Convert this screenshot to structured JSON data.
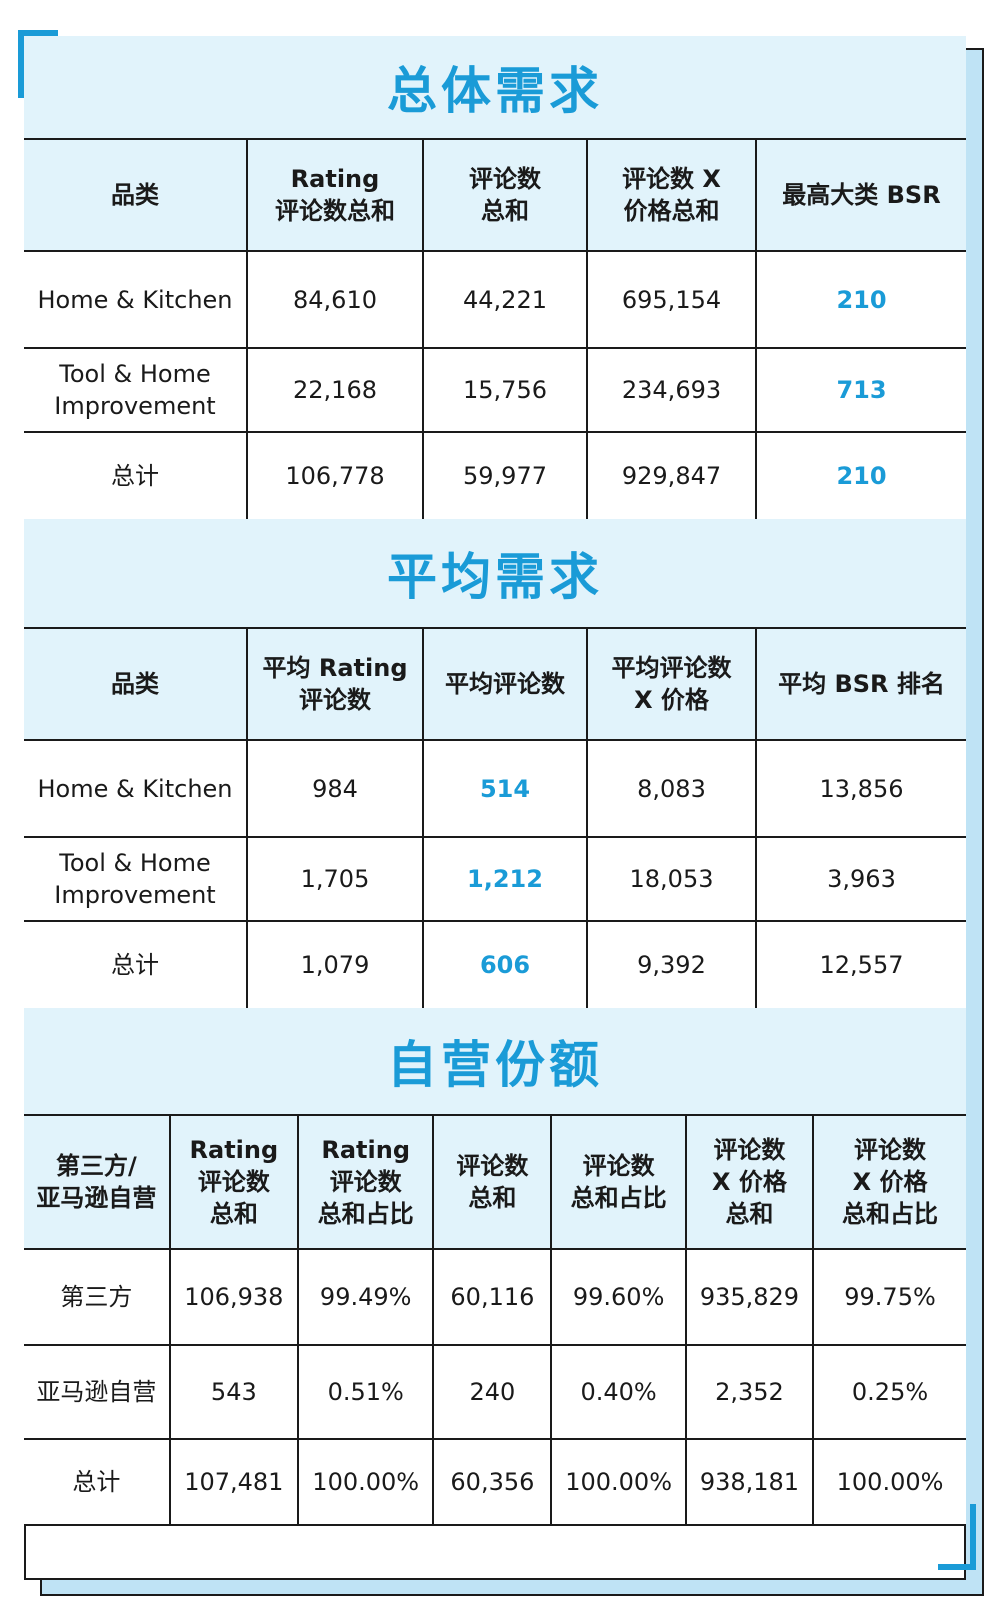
{
  "colors": {
    "accent": "#1a9bd7",
    "header_bg": "#e1f3fb",
    "shadow": "#bfe3f5"
  },
  "section1": {
    "title": "总体需求",
    "headers": [
      "品类",
      "Rating\n评论数总和",
      "评论数\n总和",
      "评论数 X\n价格总和",
      "最高大类 BSR"
    ],
    "rows": [
      [
        "Home & Kitchen",
        "84,610",
        "44,221",
        "695,154",
        "210"
      ],
      [
        "Tool & Home\nImprovement",
        "22,168",
        "15,756",
        "234,693",
        "713"
      ],
      [
        "总计",
        "106,778",
        "59,977",
        "929,847",
        "210"
      ]
    ]
  },
  "section2": {
    "title": "平均需求",
    "headers": [
      "品类",
      "平均 Rating\n评论数",
      "平均评论数",
      "平均评论数\nX 价格",
      "平均 BSR 排名"
    ],
    "rows": [
      [
        "Home & Kitchen",
        "984",
        "514",
        "8,083",
        "13,856"
      ],
      [
        "Tool & Home\nImprovement",
        "1,705",
        "1,212",
        "18,053",
        "3,963"
      ],
      [
        "总计",
        "1,079",
        "606",
        "9,392",
        "12,557"
      ]
    ]
  },
  "section3": {
    "title": "自营份额",
    "headers": [
      "第三方/\n亚马逊自营",
      "Rating\n评论数\n总和",
      "Rating\n评论数\n总和占比",
      "评论数\n总和",
      "评论数\n总和占比",
      "评论数\nX 价格\n总和",
      "评论数\nX 价格\n总和占比"
    ],
    "rows": [
      [
        "第三方",
        "106,938",
        "99.49%",
        "60,116",
        "99.60%",
        "935,829",
        "99.75%"
      ],
      [
        "亚马逊自营",
        "543",
        "0.51%",
        "240",
        "0.40%",
        "2,352",
        "0.25%"
      ],
      [
        "总计",
        "107,481",
        "100.00%",
        "60,356",
        "100.00%",
        "938,181",
        "100.00%"
      ]
    ]
  }
}
